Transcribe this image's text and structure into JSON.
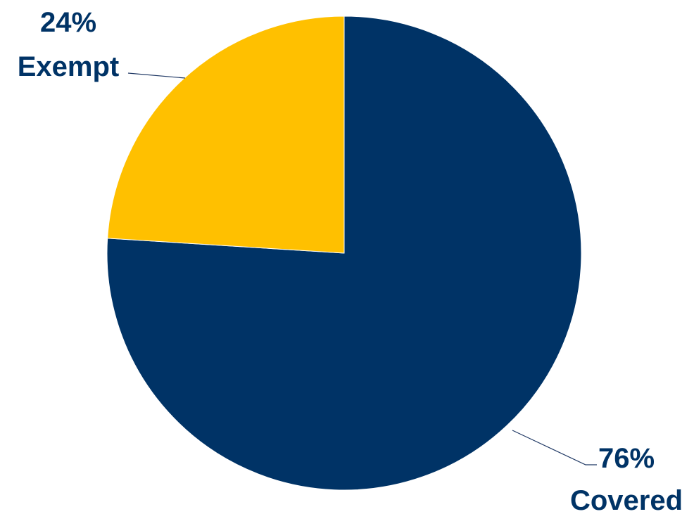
{
  "chart_data": {
    "type": "pie",
    "slices": [
      {
        "label": "Covered",
        "value": 76,
        "percent_text": "76%",
        "color": "#003366"
      },
      {
        "label": "Exempt",
        "value": 24,
        "percent_text": "24%",
        "color": "#FFC000"
      }
    ],
    "start_angle_deg": 0,
    "direction": "clockwise",
    "label_color": "#003366",
    "leader_line_color": "#1F3864"
  }
}
